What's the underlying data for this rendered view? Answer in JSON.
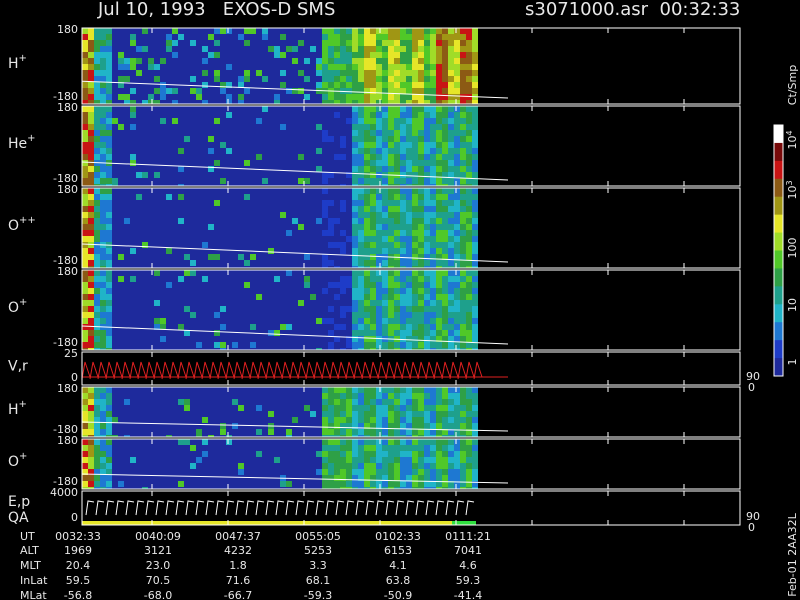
{
  "header": {
    "title": "Jul 10, 1993   EXOS-D SMS",
    "file": "s3071000.asr  00:32:33"
  },
  "panels": [
    {
      "name": "H",
      "sup": "+",
      "top": "180",
      "bottom": "-180"
    },
    {
      "name": "He",
      "sup": "+",
      "top": "180",
      "bottom": "-180"
    },
    {
      "name": "O",
      "sup": "++",
      "top": "180",
      "bottom": "-180"
    },
    {
      "name": "O",
      "sup": "+",
      "top": "180",
      "bottom": "-180"
    },
    {
      "name": "V,r",
      "top": "25",
      "bottom": "0",
      "right_top": "90",
      "right_bottom": "0"
    },
    {
      "name": "H",
      "sup": "+",
      "top": "180",
      "bottom": "-180"
    },
    {
      "name": "O",
      "sup": "+",
      "top": "180",
      "bottom": "-180"
    },
    {
      "name": "E,p",
      "name2": "QA",
      "top": "4000",
      "bottom": "0",
      "right_top": "90",
      "right_bottom": "0"
    }
  ],
  "colorbar": {
    "unit": "Ct/Smp",
    "labels": [
      {
        "base": "10",
        "exp": "4"
      },
      {
        "base": "10",
        "exp": "3"
      },
      {
        "base": "100"
      },
      {
        "base": "10"
      },
      {
        "base": "1"
      }
    ]
  },
  "table": {
    "labels": [
      "UT",
      "ALT",
      "MLT",
      "InLat",
      "MLat"
    ],
    "rows": [
      [
        "0032:33",
        "0040:09",
        "0047:37",
        "0055:05",
        "0102:33",
        "0111:21"
      ],
      [
        "1969",
        "3121",
        "4232",
        "5253",
        "6153",
        "7041"
      ],
      [
        "20.4",
        "23.0",
        "1.8",
        "3.3",
        "4.1",
        "4.6"
      ],
      [
        "59.5",
        "70.5",
        "71.6",
        "68.1",
        "63.8",
        "59.3"
      ],
      [
        "-56.8",
        "-68.0",
        "-66.7",
        "-59.3",
        "-50.9",
        "-41.4"
      ]
    ]
  },
  "footer": "Feb-01 2AA32L"
}
